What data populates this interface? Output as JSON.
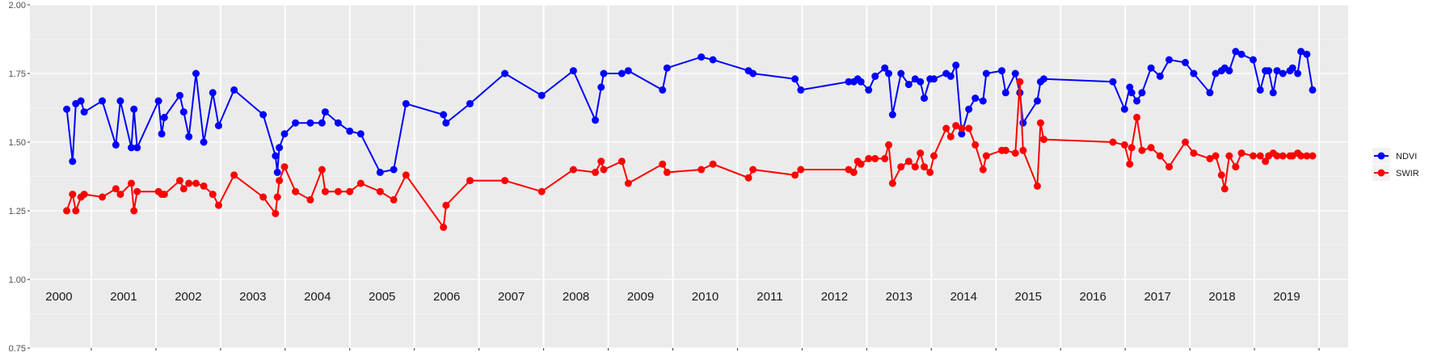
{
  "chart_data": {
    "type": "line",
    "title": "",
    "xlabel": "",
    "ylabel": "",
    "xlim": [
      1999.55,
      2019.95
    ],
    "ylim": [
      0.75,
      2.0
    ],
    "y_ticks": [
      0.75,
      1.0,
      1.25,
      1.5,
      1.75,
      2.0
    ],
    "y_tick_labels": [
      "0.75",
      "1.00",
      "1.25",
      "1.50",
      "1.75",
      "2.00"
    ],
    "x_major_gridlines": [
      2000.5,
      2001.5,
      2002.5,
      2003.5,
      2004.5,
      2005.5,
      2006.5,
      2007.5,
      2008.5,
      2009.5,
      2010.5,
      2011.5,
      2012.5,
      2013.5,
      2014.5,
      2015.5,
      2016.5,
      2017.5,
      2018.5,
      2019.5
    ],
    "year_labels": [
      {
        "x": 2000,
        "label": "2000"
      },
      {
        "x": 2001,
        "label": "2001"
      },
      {
        "x": 2002,
        "label": "2002"
      },
      {
        "x": 2003,
        "label": "2003"
      },
      {
        "x": 2004,
        "label": "2004"
      },
      {
        "x": 2005,
        "label": "2005"
      },
      {
        "x": 2006,
        "label": "2006"
      },
      {
        "x": 2007,
        "label": "2007"
      },
      {
        "x": 2008,
        "label": "2008"
      },
      {
        "x": 2009,
        "label": "2009"
      },
      {
        "x": 2010,
        "label": "2010"
      },
      {
        "x": 2011,
        "label": "2011"
      },
      {
        "x": 2012,
        "label": "2012"
      },
      {
        "x": 2013,
        "label": "2013"
      },
      {
        "x": 2014,
        "label": "2014"
      },
      {
        "x": 2015,
        "label": "2015"
      },
      {
        "x": 2016,
        "label": "2016"
      },
      {
        "x": 2017,
        "label": "2017"
      },
      {
        "x": 2018,
        "label": "2018"
      },
      {
        "x": 2019,
        "label": "2019"
      }
    ],
    "grid": true,
    "legend_position": "right",
    "series": [
      {
        "name": "NDVI",
        "color": "#0000ff",
        "x": [
          2000.12,
          2000.21,
          2000.26,
          2000.34,
          2000.39,
          2000.67,
          2000.88,
          2000.95,
          2001.12,
          2001.16,
          2001.21,
          2001.54,
          2001.59,
          2001.63,
          2001.87,
          2001.93,
          2002.01,
          2002.12,
          2002.24,
          2002.38,
          2002.47,
          2002.71,
          2003.16,
          2003.35,
          2003.38,
          2003.41,
          2003.49,
          2003.66,
          2003.89,
          2004.07,
          2004.12,
          2004.32,
          2004.5,
          2004.67,
          2004.97,
          2005.18,
          2005.37,
          2005.95,
          2005.99,
          2006.36,
          2006.9,
          2007.47,
          2007.96,
          2008.3,
          2008.39,
          2008.43,
          2008.71,
          2008.81,
          2009.34,
          2009.41,
          2009.94,
          2010.12,
          2010.67,
          2010.74,
          2011.39,
          2011.48,
          2012.22,
          2012.3,
          2012.36,
          2012.41,
          2012.53,
          2012.63,
          2012.78,
          2012.84,
          2012.9,
          2013.03,
          2013.15,
          2013.25,
          2013.33,
          2013.39,
          2013.48,
          2013.54,
          2013.73,
          2013.8,
          2013.88,
          2013.97,
          2014.08,
          2014.18,
          2014.3,
          2014.35,
          2014.59,
          2014.65,
          2014.8,
          2014.87,
          2014.92,
          2015.14,
          2015.19,
          2015.24,
          2016.31,
          2016.49,
          2016.57,
          2016.6,
          2016.68,
          2016.76,
          2016.9,
          2017.04,
          2017.18,
          2017.43,
          2017.56,
          2017.81,
          2017.9,
          2017.99,
          2018.04,
          2018.11,
          2018.21,
          2018.3,
          2018.48,
          2018.59,
          2018.67,
          2018.72,
          2018.79,
          2018.85,
          2018.94,
          2019.05,
          2019.09,
          2019.17,
          2019.22,
          2019.31,
          2019.4
        ],
        "values": [
          1.62,
          1.43,
          1.64,
          1.65,
          1.61,
          1.65,
          1.49,
          1.65,
          1.48,
          1.62,
          1.48,
          1.65,
          1.53,
          1.59,
          1.67,
          1.61,
          1.52,
          1.75,
          1.5,
          1.68,
          1.56,
          1.69,
          1.6,
          1.45,
          1.39,
          1.48,
          1.53,
          1.57,
          1.57,
          1.57,
          1.61,
          1.57,
          1.54,
          1.53,
          1.39,
          1.4,
          1.64,
          1.6,
          1.57,
          1.64,
          1.75,
          1.67,
          1.76,
          1.58,
          1.7,
          1.75,
          1.75,
          1.76,
          1.69,
          1.77,
          1.81,
          1.8,
          1.76,
          1.75,
          1.73,
          1.69,
          1.72,
          1.72,
          1.73,
          1.72,
          1.69,
          1.74,
          1.77,
          1.75,
          1.6,
          1.75,
          1.71,
          1.73,
          1.72,
          1.66,
          1.73,
          1.73,
          1.75,
          1.74,
          1.78,
          1.53,
          1.62,
          1.66,
          1.65,
          1.75,
          1.76,
          1.68,
          1.75,
          1.68,
          1.57,
          1.65,
          1.72,
          1.73,
          1.72,
          1.62,
          1.7,
          1.68,
          1.65,
          1.68,
          1.77,
          1.74,
          1.8,
          1.79,
          1.75,
          1.68,
          1.75,
          1.76,
          1.77,
          1.76,
          1.83,
          1.82,
          1.8,
          1.69,
          1.76,
          1.76,
          1.68,
          1.76,
          1.75,
          1.76,
          1.77,
          1.75,
          1.83,
          1.82,
          1.69
        ]
      },
      {
        "name": "SWIR",
        "color": "#ff0000",
        "x": [
          2000.12,
          2000.21,
          2000.26,
          2000.34,
          2000.39,
          2000.67,
          2000.88,
          2000.95,
          2001.12,
          2001.16,
          2001.21,
          2001.54,
          2001.59,
          2001.63,
          2001.87,
          2001.93,
          2002.01,
          2002.12,
          2002.24,
          2002.38,
          2002.47,
          2002.71,
          2003.16,
          2003.35,
          2003.38,
          2003.41,
          2003.49,
          2003.66,
          2003.89,
          2004.07,
          2004.12,
          2004.32,
          2004.5,
          2004.67,
          2004.97,
          2005.18,
          2005.37,
          2005.95,
          2005.99,
          2006.36,
          2006.9,
          2007.47,
          2007.96,
          2008.3,
          2008.39,
          2008.43,
          2008.71,
          2008.81,
          2009.34,
          2009.41,
          2009.94,
          2010.12,
          2010.67,
          2010.74,
          2011.39,
          2011.48,
          2012.22,
          2012.3,
          2012.36,
          2012.41,
          2012.53,
          2012.63,
          2012.78,
          2012.84,
          2012.9,
          2013.03,
          2013.15,
          2013.25,
          2013.33,
          2013.39,
          2013.48,
          2013.54,
          2013.73,
          2013.8,
          2013.88,
          2013.97,
          2014.08,
          2014.18,
          2014.3,
          2014.35,
          2014.59,
          2014.65,
          2014.8,
          2014.87,
          2014.92,
          2015.14,
          2015.19,
          2015.24,
          2016.31,
          2016.49,
          2016.57,
          2016.6,
          2016.68,
          2016.76,
          2016.9,
          2017.04,
          2017.18,
          2017.43,
          2017.56,
          2017.81,
          2017.9,
          2017.99,
          2018.04,
          2018.11,
          2018.21,
          2018.3,
          2018.48,
          2018.59,
          2018.67,
          2018.72,
          2018.79,
          2018.85,
          2018.94,
          2019.05,
          2019.09,
          2019.17,
          2019.22,
          2019.31,
          2019.4
        ],
        "values": [
          1.25,
          1.31,
          1.25,
          1.3,
          1.31,
          1.3,
          1.33,
          1.31,
          1.35,
          1.25,
          1.32,
          1.32,
          1.31,
          1.31,
          1.36,
          1.33,
          1.35,
          1.35,
          1.34,
          1.31,
          1.27,
          1.38,
          1.3,
          1.24,
          1.3,
          1.36,
          1.41,
          1.32,
          1.29,
          1.4,
          1.32,
          1.32,
          1.32,
          1.35,
          1.32,
          1.29,
          1.38,
          1.19,
          1.27,
          1.36,
          1.36,
          1.32,
          1.4,
          1.39,
          1.43,
          1.4,
          1.43,
          1.35,
          1.42,
          1.39,
          1.4,
          1.42,
          1.37,
          1.4,
          1.38,
          1.4,
          1.4,
          1.39,
          1.43,
          1.42,
          1.44,
          1.44,
          1.44,
          1.49,
          1.35,
          1.41,
          1.43,
          1.41,
          1.46,
          1.41,
          1.39,
          1.45,
          1.55,
          1.52,
          1.56,
          1.55,
          1.55,
          1.49,
          1.4,
          1.45,
          1.47,
          1.47,
          1.46,
          1.72,
          1.47,
          1.34,
          1.57,
          1.51,
          1.5,
          1.49,
          1.42,
          1.48,
          1.59,
          1.47,
          1.48,
          1.45,
          1.41,
          1.5,
          1.46,
          1.44,
          1.45,
          1.38,
          1.33,
          1.45,
          1.41,
          1.46,
          1.45,
          1.45,
          1.43,
          1.45,
          1.46,
          1.45,
          1.45,
          1.45,
          1.45,
          1.46,
          1.45,
          1.45,
          1.45
        ]
      }
    ]
  }
}
